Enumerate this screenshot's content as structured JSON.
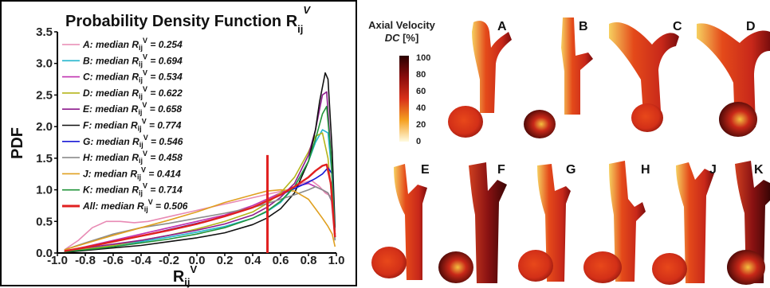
{
  "chart_data": {
    "type": "line",
    "title": "Probability Density Function R",
    "title_sub": "ij",
    "title_sup": "V",
    "xlabel": "R",
    "xlabel_sub": "ij",
    "xlabel_sup": "V",
    "ylabel": "PDF",
    "xlim": [
      -1.0,
      1.0
    ],
    "ylim": [
      0.0,
      3.5
    ],
    "xticks": [
      "-1.0",
      "-0.8",
      "-0.6",
      "-0.4",
      "-0.2",
      "0.0",
      "0.2",
      "0.4",
      "0.6",
      "0.8",
      "1.0"
    ],
    "yticks": [
      "0.0",
      "0.5",
      "1.0",
      "1.5",
      "2.0",
      "2.5",
      "3.0",
      "3.5"
    ],
    "legend_position": "top-left",
    "series": [
      {
        "name": "A",
        "median": "0.254",
        "color": "#e88ab4",
        "x": [
          -0.95,
          -0.85,
          -0.75,
          -0.65,
          -0.55,
          -0.45,
          -0.35,
          -0.25,
          -0.15,
          -0.05,
          0.05,
          0.15,
          0.25,
          0.35,
          0.45,
          0.55,
          0.65,
          0.75,
          0.82,
          0.88,
          0.92,
          0.96,
          0.99
        ],
        "y": [
          0.05,
          0.2,
          0.4,
          0.5,
          0.5,
          0.48,
          0.5,
          0.55,
          0.6,
          0.65,
          0.7,
          0.75,
          0.8,
          0.85,
          0.9,
          0.95,
          1.0,
          1.1,
          1.15,
          1.05,
          0.95,
          0.9,
          0.2
        ]
      },
      {
        "name": "B",
        "median": "0.694",
        "color": "#22b5cc",
        "x": [
          -0.95,
          -0.8,
          -0.6,
          -0.4,
          -0.2,
          0.0,
          0.2,
          0.4,
          0.5,
          0.6,
          0.7,
          0.8,
          0.85,
          0.9,
          0.94,
          0.97,
          0.99
        ],
        "y": [
          0.02,
          0.06,
          0.12,
          0.18,
          0.25,
          0.33,
          0.42,
          0.55,
          0.65,
          0.8,
          1.05,
          1.45,
          1.75,
          1.95,
          1.9,
          1.2,
          0.3
        ]
      },
      {
        "name": "C",
        "median": "0.534",
        "color": "#c033b0",
        "x": [
          -0.95,
          -0.8,
          -0.6,
          -0.4,
          -0.2,
          0.0,
          0.2,
          0.4,
          0.5,
          0.6,
          0.7,
          0.8,
          0.85,
          0.9,
          0.94,
          0.97,
          0.99
        ],
        "y": [
          0.03,
          0.1,
          0.2,
          0.3,
          0.4,
          0.5,
          0.6,
          0.75,
          0.85,
          0.95,
          1.05,
          1.1,
          1.05,
          1.0,
          0.95,
          0.8,
          0.2
        ]
      },
      {
        "name": "D",
        "median": "0.622",
        "color": "#b5b51c",
        "x": [
          -0.95,
          -0.8,
          -0.6,
          -0.4,
          -0.2,
          0.0,
          0.2,
          0.4,
          0.5,
          0.6,
          0.7,
          0.8,
          0.85,
          0.9,
          0.94,
          0.97,
          0.99
        ],
        "y": [
          0.02,
          0.06,
          0.12,
          0.2,
          0.28,
          0.38,
          0.5,
          0.65,
          0.78,
          0.95,
          1.2,
          1.6,
          1.85,
          1.9,
          1.5,
          0.8,
          0.2
        ]
      },
      {
        "name": "E",
        "median": "0.658",
        "color": "#8c1a8c",
        "x": [
          -0.95,
          -0.8,
          -0.6,
          -0.4,
          -0.2,
          0.0,
          0.2,
          0.4,
          0.5,
          0.6,
          0.7,
          0.8,
          0.85,
          0.9,
          0.93,
          0.96,
          0.99
        ],
        "y": [
          0.03,
          0.08,
          0.14,
          0.2,
          0.28,
          0.36,
          0.46,
          0.6,
          0.72,
          0.88,
          1.1,
          1.55,
          1.95,
          2.5,
          2.55,
          1.6,
          0.3
        ]
      },
      {
        "name": "F",
        "median": "0.774",
        "color": "#111111",
        "x": [
          -0.95,
          -0.8,
          -0.6,
          -0.4,
          -0.2,
          0.0,
          0.2,
          0.4,
          0.5,
          0.6,
          0.7,
          0.8,
          0.85,
          0.88,
          0.92,
          0.94,
          0.97,
          0.99
        ],
        "y": [
          0.01,
          0.04,
          0.08,
          0.12,
          0.18,
          0.24,
          0.32,
          0.45,
          0.55,
          0.7,
          0.95,
          1.45,
          1.95,
          2.4,
          2.85,
          2.75,
          1.6,
          0.4
        ]
      },
      {
        "name": "G",
        "median": "0.546",
        "color": "#1a1ad6",
        "x": [
          -0.95,
          -0.8,
          -0.6,
          -0.4,
          -0.2,
          0.0,
          0.2,
          0.4,
          0.5,
          0.6,
          0.7,
          0.8,
          0.85,
          0.9,
          0.94,
          0.97,
          0.99
        ],
        "y": [
          0.03,
          0.09,
          0.18,
          0.27,
          0.37,
          0.47,
          0.58,
          0.72,
          0.82,
          0.92,
          1.02,
          1.12,
          1.18,
          1.25,
          1.35,
          1.25,
          0.3
        ]
      },
      {
        "name": "H",
        "median": "0.458",
        "color": "#8c8c8c",
        "x": [
          -0.95,
          -0.8,
          -0.6,
          -0.4,
          -0.2,
          0.0,
          0.2,
          0.4,
          0.5,
          0.6,
          0.7,
          0.8,
          0.85,
          0.9,
          0.94,
          0.97,
          0.99
        ],
        "y": [
          0.05,
          0.16,
          0.3,
          0.4,
          0.47,
          0.55,
          0.63,
          0.72,
          0.78,
          0.85,
          0.92,
          1.0,
          1.05,
          1.0,
          0.95,
          0.8,
          0.2
        ]
      },
      {
        "name": "J",
        "median": "0.414",
        "color": "#e0a020",
        "x": [
          -0.95,
          -0.8,
          -0.6,
          -0.4,
          -0.2,
          0.0,
          0.2,
          0.4,
          0.5,
          0.6,
          0.7,
          0.8,
          0.85,
          0.9,
          0.94,
          0.97,
          0.99
        ],
        "y": [
          0.05,
          0.15,
          0.28,
          0.4,
          0.52,
          0.65,
          0.8,
          0.92,
          0.98,
          1.0,
          0.98,
          0.85,
          0.7,
          0.55,
          0.42,
          0.3,
          0.1
        ]
      },
      {
        "name": "K",
        "median": "0.714",
        "color": "#22943a",
        "x": [
          -0.95,
          -0.8,
          -0.6,
          -0.4,
          -0.2,
          0.0,
          0.2,
          0.4,
          0.5,
          0.6,
          0.7,
          0.8,
          0.85,
          0.9,
          0.93,
          0.96,
          0.99
        ],
        "y": [
          0.02,
          0.05,
          0.1,
          0.16,
          0.22,
          0.3,
          0.4,
          0.55,
          0.66,
          0.82,
          1.05,
          1.45,
          1.8,
          2.2,
          2.32,
          1.6,
          0.3
        ]
      },
      {
        "name": "All",
        "median": "0.506",
        "color": "#e02020",
        "x": [
          -0.95,
          -0.8,
          -0.6,
          -0.4,
          -0.2,
          0.0,
          0.2,
          0.4,
          0.5,
          0.6,
          0.7,
          0.8,
          0.85,
          0.9,
          0.93,
          0.96,
          0.99
        ],
        "y": [
          0.03,
          0.09,
          0.18,
          0.27,
          0.36,
          0.46,
          0.58,
          0.72,
          0.82,
          0.92,
          1.05,
          1.2,
          1.3,
          1.38,
          1.4,
          1.1,
          0.25
        ]
      }
    ],
    "median_marker": {
      "x": 0.506,
      "y_from": 0.0,
      "y_to": 1.55,
      "color": "#e02020"
    },
    "legend_prefix": "median R",
    "legend_sub": "ij",
    "legend_sup": "V",
    "legend_eq": " = "
  },
  "render_panel": {
    "colorbar": {
      "title_line1": "Axial Velocity",
      "title_line2_italic": "DC",
      "title_line2_rest": " [%]",
      "ticks": [
        "100",
        "80",
        "60",
        "40",
        "20",
        "0"
      ]
    },
    "case_labels": [
      "A",
      "B",
      "C",
      "D",
      "E",
      "F",
      "G",
      "H",
      "J",
      "K"
    ]
  }
}
